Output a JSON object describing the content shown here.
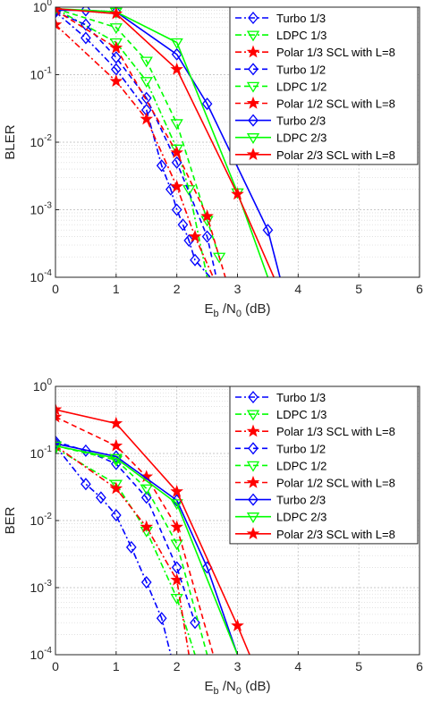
{
  "colors": {
    "blue": "#0000ff",
    "green": "#00ff00",
    "red": "#ff0000"
  },
  "chart_data": [
    {
      "type": "line",
      "ylabel": "BLER",
      "xlabel_parts": [
        "E",
        "b",
        " /N",
        "0",
        " (dB)"
      ],
      "xlim": [
        0,
        6
      ],
      "ylim": [
        0.0001,
        1
      ],
      "yscale": "log",
      "grid": true,
      "legend_position": "top-right",
      "x_ticks": [
        "0",
        "1",
        "2",
        "3",
        "4",
        "5",
        "6"
      ],
      "y_ticks": [
        {
          "base": "10",
          "exp": "-4"
        },
        {
          "base": "10",
          "exp": "-3"
        },
        {
          "base": "10",
          "exp": "-2"
        },
        {
          "base": "10",
          "exp": "-1"
        },
        {
          "base": "10",
          "exp": "0"
        }
      ],
      "series": [
        {
          "name": "Turbo 1/3",
          "color": "blue",
          "style": "dashdot",
          "marker": "diamond",
          "x": [
            0,
            0.5,
            1,
            1.5,
            1.75,
            1.9,
            2.0,
            2.1,
            2.2,
            2.3,
            2.55
          ],
          "y": [
            0.85,
            0.35,
            0.12,
            0.03,
            0.0045,
            0.002,
            0.001,
            0.0006,
            0.00035,
            0.00018,
            0.0001
          ]
        },
        {
          "name": "LDPC 1/3",
          "color": "green",
          "style": "dashdot",
          "marker": "triangle",
          "x": [
            0,
            1,
            1.5,
            2.0,
            2.2,
            2.5,
            2.6
          ],
          "y": [
            0.95,
            0.3,
            0.08,
            0.008,
            0.002,
            0.0001,
            5e-05
          ]
        },
        {
          "name": "Polar 1/3 SCL with L=8",
          "color": "red",
          "style": "dashdot",
          "marker": "star",
          "x": [
            0,
            1,
            1.5,
            2.0,
            2.3,
            2.6
          ],
          "y": [
            0.55,
            0.08,
            0.022,
            0.0022,
            0.0004,
            0.0001
          ]
        },
        {
          "name": "Turbo 1/2",
          "color": "blue",
          "style": "dash",
          "marker": "diamond",
          "x": [
            0,
            0.5,
            1,
            1.5,
            2,
            2.5,
            2.65
          ],
          "y": [
            0.85,
            0.55,
            0.18,
            0.045,
            0.005,
            0.0004,
            0.0001
          ]
        },
        {
          "name": "LDPC 1/2",
          "color": "green",
          "style": "dash",
          "marker": "triangle",
          "x": [
            0,
            1,
            1.5,
            2.0,
            2.5,
            2.7
          ],
          "y": [
            0.95,
            0.5,
            0.16,
            0.019,
            0.0007,
            0.0002
          ]
        },
        {
          "name": "Polar 1/2 SCL with L=8",
          "color": "red",
          "style": "dash",
          "marker": "star",
          "x": [
            0,
            1,
            2.0,
            2.5,
            2.8
          ],
          "y": [
            0.9,
            0.25,
            0.007,
            0.0008,
            0.0001
          ]
        },
        {
          "name": "Turbo 2/3",
          "color": "blue",
          "style": "solid",
          "marker": "diamond",
          "x": [
            0,
            0.5,
            1,
            2,
            2.5,
            3.5,
            3.7
          ],
          "y": [
            0.9,
            0.9,
            0.85,
            0.2,
            0.037,
            0.0005,
            0.0001
          ]
        },
        {
          "name": "LDPC 2/3",
          "color": "green",
          "style": "solid",
          "marker": "triangle",
          "x": [
            0,
            1,
            2,
            3,
            3.5
          ],
          "y": [
            0.95,
            0.85,
            0.3,
            0.0018,
            0.0001
          ]
        },
        {
          "name": "Polar 2/3 SCL with L=8",
          "color": "red",
          "style": "solid",
          "marker": "star",
          "x": [
            0,
            1,
            2,
            3,
            3.6
          ],
          "y": [
            0.95,
            0.8,
            0.12,
            0.0017,
            0.0001
          ]
        }
      ]
    },
    {
      "type": "line",
      "ylabel": "BER",
      "xlabel_parts": [
        "E",
        "b",
        " /N",
        "0",
        " (dB)"
      ],
      "xlim": [
        0,
        6
      ],
      "ylim": [
        0.0001,
        1
      ],
      "yscale": "log",
      "grid": true,
      "legend_position": "top-right",
      "x_ticks": [
        "0",
        "1",
        "2",
        "3",
        "4",
        "5",
        "6"
      ],
      "y_ticks": [
        {
          "base": "10",
          "exp": "-4"
        },
        {
          "base": "10",
          "exp": "-3"
        },
        {
          "base": "10",
          "exp": "-2"
        },
        {
          "base": "10",
          "exp": "-1"
        },
        {
          "base": "10",
          "exp": "0"
        }
      ],
      "series": [
        {
          "name": "Turbo 1/3",
          "color": "blue",
          "style": "dashdot",
          "marker": "diamond",
          "x": [
            0,
            0.5,
            0.75,
            1.0,
            1.25,
            1.5,
            1.75,
            1.9
          ],
          "y": [
            0.13,
            0.035,
            0.022,
            0.012,
            0.004,
            0.0012,
            0.00035,
            0.0001
          ]
        },
        {
          "name": "LDPC 1/3",
          "color": "green",
          "style": "dashdot",
          "marker": "triangle",
          "x": [
            0,
            1,
            1.5,
            2,
            2.3
          ],
          "y": [
            0.12,
            0.035,
            0.007,
            0.0007,
            0.0001
          ]
        },
        {
          "name": "Polar 1/3 SCL with L=8",
          "color": "red",
          "style": "dashdot",
          "marker": "star",
          "x": [
            0,
            1,
            1.5,
            2,
            2.2
          ],
          "y": [
            0.13,
            0.03,
            0.008,
            0.0013,
            0.0001
          ]
        },
        {
          "name": "Turbo 1/2",
          "color": "blue",
          "style": "dash",
          "marker": "diamond",
          "x": [
            0,
            0.5,
            1,
            1.5,
            2,
            2.3
          ],
          "y": [
            0.15,
            0.11,
            0.07,
            0.022,
            0.002,
            0.0003
          ]
        },
        {
          "name": "LDPC 1/2",
          "color": "green",
          "style": "dash",
          "marker": "triangle",
          "x": [
            0,
            1,
            1.5,
            2,
            2.5
          ],
          "y": [
            0.13,
            0.08,
            0.03,
            0.0045,
            0.0001
          ]
        },
        {
          "name": "Polar 1/2 SCL with L=8",
          "color": "red",
          "style": "dash",
          "marker": "star",
          "x": [
            0,
            1,
            1.5,
            2,
            2.6
          ],
          "y": [
            0.35,
            0.13,
            0.045,
            0.008,
            0.0001
          ]
        },
        {
          "name": "Turbo 2/3",
          "color": "blue",
          "style": "solid",
          "marker": "diamond",
          "x": [
            0,
            1,
            2,
            2.5,
            3.0
          ],
          "y": [
            0.14,
            0.09,
            0.02,
            0.002,
            0.0001
          ]
        },
        {
          "name": "LDPC 2/3",
          "color": "green",
          "style": "solid",
          "marker": "triangle",
          "x": [
            0,
            1,
            2,
            3
          ],
          "y": [
            0.13,
            0.085,
            0.018,
            0.0001
          ]
        },
        {
          "name": "Polar 2/3 SCL with L=8",
          "color": "red",
          "style": "solid",
          "marker": "star",
          "x": [
            0,
            1,
            2,
            3,
            3.2
          ],
          "y": [
            0.45,
            0.28,
            0.027,
            0.00027,
            0.0001
          ]
        }
      ]
    }
  ]
}
